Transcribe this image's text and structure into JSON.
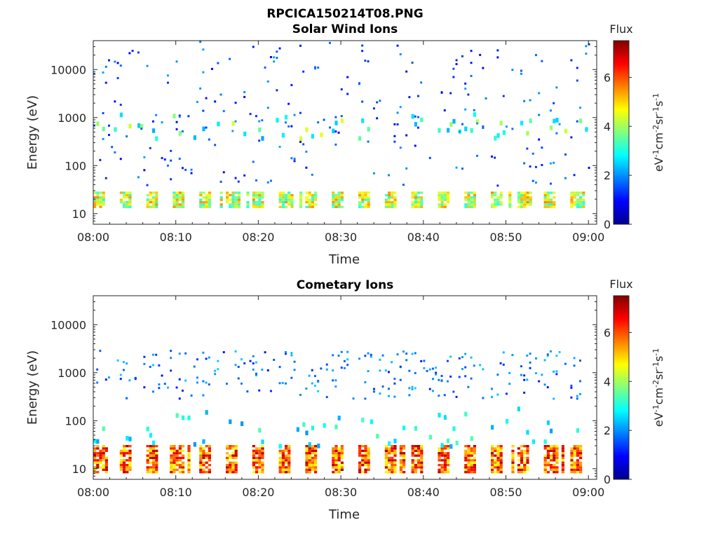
{
  "figure": {
    "title_line1": "RPCICA150214T08.PNG",
    "title_line2": "Solar Wind Ions"
  },
  "colors": {
    "colormap": [
      "#00008f",
      "#0000ff",
      "#0080ff",
      "#00ffff",
      "#80ff80",
      "#ffff00",
      "#ff8000",
      "#ff0000",
      "#800000"
    ],
    "axis": "#262626",
    "background": "#ffffff"
  },
  "chart_data": [
    {
      "type": "heatmap",
      "title": "",
      "xlabel": "Time",
      "ylabel": "Energy (eV)",
      "ylog": true,
      "ylim": [
        6,
        40000
      ],
      "xlim_minutes": [
        0,
        61
      ],
      "xticks": [
        "08:00",
        "08:10",
        "08:20",
        "08:30",
        "08:40",
        "08:50",
        "09:00"
      ],
      "yticks": [
        10,
        100,
        1000,
        10000
      ],
      "colorbar": {
        "label": "Flux",
        "unit": "eV-1cm-2sr-1s-1",
        "range": [
          0,
          7.5
        ],
        "ticks": [
          0,
          2,
          4,
          6
        ]
      },
      "pattern": {
        "seed": 7,
        "low_band_energy": [
          13,
          28
        ],
        "low_band_flux": [
          3.0,
          5.6
        ],
        "mid_band_energy": [
          400,
          1300
        ],
        "mid_band_flux": [
          2.0,
          4.5
        ],
        "scatter_flux": [
          0.8,
          2.2
        ],
        "scatter_energy": [
          40,
          40000
        ],
        "burst_period_min": 3.2
      }
    },
    {
      "type": "heatmap",
      "title": "Cometary Ions",
      "xlabel": "Time",
      "ylabel": "Energy (eV)",
      "ylog": true,
      "ylim": [
        6,
        40000
      ],
      "xlim_minutes": [
        0,
        61
      ],
      "xticks": [
        "08:00",
        "08:10",
        "08:20",
        "08:30",
        "08:40",
        "08:50",
        "09:00"
      ],
      "yticks": [
        10,
        100,
        1000,
        10000
      ],
      "colorbar": {
        "label": "Flux",
        "unit": "eV-1cm-2sr-1s-1",
        "range": [
          0,
          7.5
        ],
        "ticks": [
          0,
          2,
          4,
          6
        ]
      },
      "pattern": {
        "seed": 13,
        "low_band_energy": [
          8,
          28
        ],
        "low_band_flux": [
          4.5,
          7.2
        ],
        "mid_band_energy": [
          30,
          200
        ],
        "mid_band_flux": [
          2.0,
          3.5
        ],
        "scatter_flux": [
          1.0,
          2.5
        ],
        "scatter_energy": [
          300,
          3000
        ],
        "burst_period_min": 3.2
      }
    }
  ]
}
